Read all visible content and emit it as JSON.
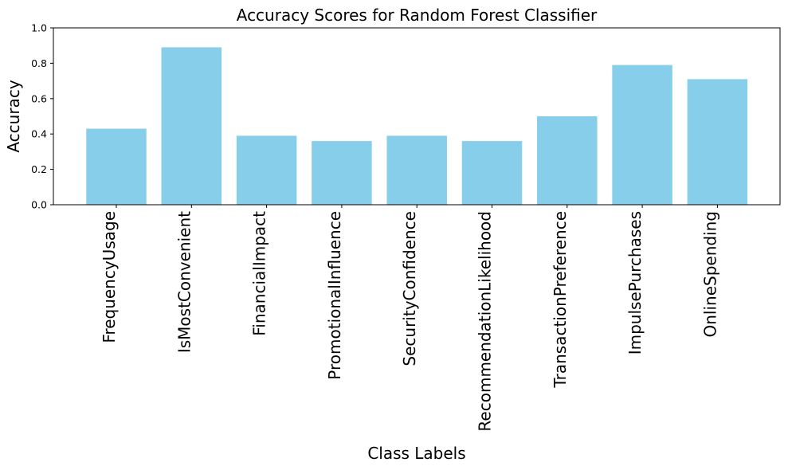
{
  "chart_data": {
    "type": "bar",
    "title": "Accuracy Scores for Random Forest Classifier",
    "xlabel": "Class Labels",
    "ylabel": "Accuracy",
    "categories": [
      "FrequencyUsage",
      "IsMostConvenient",
      "FinancialImpact",
      "PromotionalInfluence",
      "SecurityConfidence",
      "RecommendationLikelihood",
      "TransactionPreference",
      "ImpulsePurchases",
      "OnlineSpending"
    ],
    "values": [
      0.43,
      0.89,
      0.39,
      0.36,
      0.39,
      0.36,
      0.5,
      0.79,
      0.71
    ],
    "ylim": [
      0,
      1.0
    ],
    "yticks": [
      "0.0",
      "0.2",
      "0.4",
      "0.6",
      "0.8",
      "1.0"
    ],
    "bar_color": "#87CEEB",
    "grid": false,
    "legend": "none"
  }
}
